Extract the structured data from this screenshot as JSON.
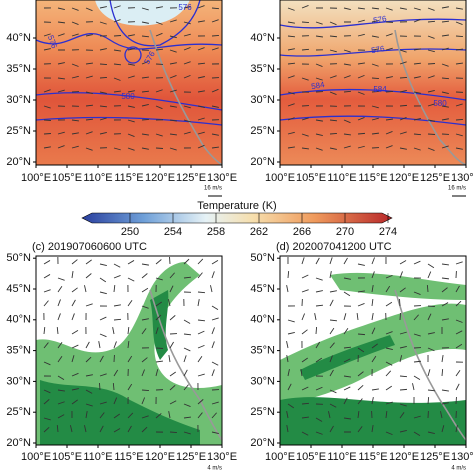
{
  "panels": [
    {
      "lat_labels": [
        "40°N",
        "35°N",
        "30°N",
        "25°N",
        "20°N"
      ],
      "lon_labels": [
        "100°E",
        "105°E",
        "110°E",
        "115°E",
        "120°E",
        "125°E",
        "130°E"
      ],
      "contour_labels": [
        "576",
        "576",
        "576",
        "580"
      ],
      "wind_ref": "16 m/s"
    },
    {
      "lat_labels": [
        "40°N",
        "35°N",
        "30°N",
        "25°N",
        "20°N"
      ],
      "lon_labels": [
        "100°E",
        "105°E",
        "110°E",
        "115°E",
        "120°E",
        "125°E",
        "130°E"
      ],
      "contour_labels": [
        "576",
        "576",
        "584",
        "584",
        "580"
      ],
      "wind_ref": "16 m/s"
    },
    {
      "title": "(c) 201907060600 UTC",
      "lat_labels": [
        "50°N",
        "45°N",
        "40°N",
        "35°N",
        "30°N",
        "25°N",
        "20°N"
      ],
      "lon_labels": [
        "100°E",
        "105°E",
        "110°E",
        "115°E",
        "120°E",
        "125°E",
        "130°E"
      ],
      "wind_ref": "4 m/s"
    },
    {
      "title": "(d) 202007041200 UTC",
      "lat_labels": [
        "50°N",
        "45°N",
        "40°N",
        "35°N",
        "30°N",
        "25°N",
        "20°N"
      ],
      "lon_labels": [
        "100°E",
        "105°E",
        "110°E",
        "115°E",
        "120°E",
        "125°E",
        "130°E"
      ],
      "wind_ref": "4 m/s"
    }
  ],
  "colorbar": {
    "title": "Temperature (K)",
    "labels": [
      "250",
      "254",
      "258",
      "262",
      "266",
      "270",
      "274"
    ]
  }
}
